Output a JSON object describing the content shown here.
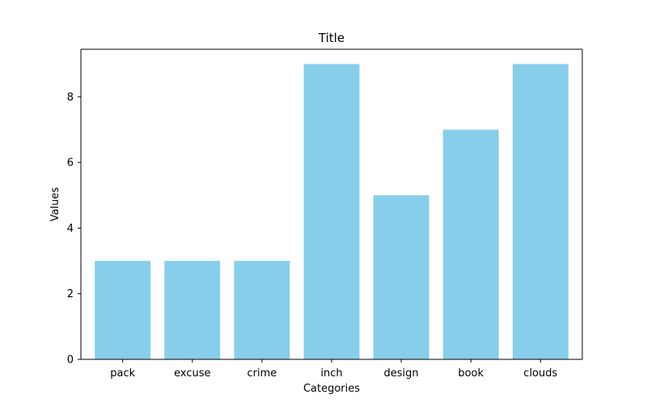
{
  "chart_data": {
    "type": "bar",
    "title": "Title",
    "xlabel": "Categories",
    "ylabel": "Values",
    "categories": [
      "pack",
      "excuse",
      "crime",
      "inch",
      "design",
      "book",
      "clouds"
    ],
    "values": [
      3,
      3,
      3,
      9,
      5,
      7,
      9
    ],
    "ylim": [
      0,
      9.45
    ],
    "yticks": [
      0,
      2,
      4,
      6,
      8
    ],
    "bar_color": "#87ceeb",
    "grid": false,
    "legend": "none"
  }
}
